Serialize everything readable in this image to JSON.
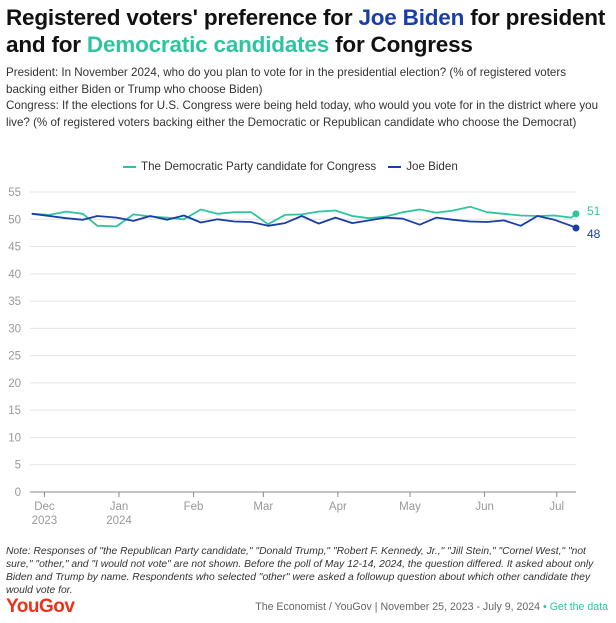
{
  "title": {
    "part1": "Registered voters' preference for ",
    "biden": "Joe Biden",
    "part2": " for president and for ",
    "dem": "Democratic candidates",
    "part3": " for Congress"
  },
  "subtitle": {
    "line1": "President: In November 2024, who do you plan to vote for in the presidential election? (% of registered voters backing either Biden or Trump who choose Biden)",
    "line2": "Congress: If the elections for U.S. Congress were being held today, who would you vote for in the district where you live? (% of registered voters backing either the Democratic or Republican candidate who choose the Democrat)"
  },
  "note": "Note: Responses of \"the Republican Party candidate,\" \"Donald Trump,\" \"Robert F. Kennedy, Jr.,\" \"Jill Stein,\" \"Cornel West,\" \"not sure,\" \"other,\" and \"I would not vote\" are not shown. Before the poll of May 12-14, 2024, the question differed. It asked about only Biden and Trump by name. Respondents who selected \"other\" were asked a followup question about which other candidate they would vote for.",
  "footer": {
    "logo": "YouGov",
    "source": "The Economist / YouGov | November 25, 2023 - July 9, 2024",
    "bullet": "•",
    "link": "Get the data"
  },
  "colors": {
    "biden": "#1a3ea8",
    "dem": "#2fc4a0",
    "grid": "#e4e4e4",
    "axis": "#888888",
    "tick": "#999999"
  },
  "chart_data": {
    "type": "line",
    "ylim": [
      0,
      55
    ],
    "yticks": [
      0,
      5,
      10,
      15,
      20,
      25,
      30,
      35,
      40,
      45,
      50,
      55
    ],
    "xlim": [
      "2023-11-25",
      "2024-07-09"
    ],
    "x_ticks": [
      {
        "date": "2023-12-01",
        "label": "Dec",
        "sub": "2023"
      },
      {
        "date": "2024-01-01",
        "label": "Jan",
        "sub": "2024"
      },
      {
        "date": "2024-02-01",
        "label": "Feb",
        "sub": ""
      },
      {
        "date": "2024-03-01",
        "label": "Mar",
        "sub": ""
      },
      {
        "date": "2024-04-01",
        "label": "Apr",
        "sub": ""
      },
      {
        "date": "2024-05-01",
        "label": "May",
        "sub": ""
      },
      {
        "date": "2024-06-01",
        "label": "Jun",
        "sub": ""
      },
      {
        "date": "2024-07-01",
        "label": "Jul",
        "sub": ""
      }
    ],
    "grid": true,
    "legend_position": "top",
    "series": [
      {
        "name": "The Democratic Party candidate for Congress",
        "color": "#2fc4a0",
        "end_label": "51",
        "points": [
          [
            "2023-11-26",
            51
          ],
          [
            "2023-12-03",
            50.8
          ],
          [
            "2023-12-10",
            51.4
          ],
          [
            "2023-12-17",
            51.0
          ],
          [
            "2023-12-23",
            48.8
          ],
          [
            "2023-12-31",
            48.7
          ],
          [
            "2024-01-07",
            50.9
          ],
          [
            "2024-01-14",
            50.5
          ],
          [
            "2024-01-21",
            50.3
          ],
          [
            "2024-01-28",
            50.0
          ],
          [
            "2024-02-04",
            51.8
          ],
          [
            "2024-02-11",
            51.0
          ],
          [
            "2024-02-18",
            51.3
          ],
          [
            "2024-02-25",
            51.3
          ],
          [
            "2024-03-03",
            49.1
          ],
          [
            "2024-03-10",
            50.8
          ],
          [
            "2024-03-17",
            50.9
          ],
          [
            "2024-03-24",
            51.4
          ],
          [
            "2024-03-31",
            51.6
          ],
          [
            "2024-04-07",
            50.6
          ],
          [
            "2024-04-14",
            50.2
          ],
          [
            "2024-04-21",
            50.5
          ],
          [
            "2024-04-28",
            51.3
          ],
          [
            "2024-05-05",
            51.8
          ],
          [
            "2024-05-12",
            51.2
          ],
          [
            "2024-05-19",
            51.6
          ],
          [
            "2024-05-26",
            52.3
          ],
          [
            "2024-06-02",
            51.3
          ],
          [
            "2024-06-09",
            51.0
          ],
          [
            "2024-06-16",
            50.7
          ],
          [
            "2024-06-23",
            50.6
          ],
          [
            "2024-06-30",
            50.7
          ],
          [
            "2024-07-07",
            50.3
          ],
          [
            "2024-07-09",
            51
          ]
        ]
      },
      {
        "name": "Joe Biden",
        "color": "#1a3ea8",
        "end_label": "48",
        "points": [
          [
            "2023-11-26",
            51
          ],
          [
            "2023-12-03",
            50.6
          ],
          [
            "2023-12-10",
            50.2
          ],
          [
            "2023-12-17",
            49.9
          ],
          [
            "2023-12-23",
            50.6
          ],
          [
            "2023-12-31",
            50.3
          ],
          [
            "2024-01-07",
            49.7
          ],
          [
            "2024-01-14",
            50.6
          ],
          [
            "2024-01-21",
            49.9
          ],
          [
            "2024-01-28",
            50.7
          ],
          [
            "2024-02-04",
            49.4
          ],
          [
            "2024-02-11",
            50.0
          ],
          [
            "2024-02-18",
            49.6
          ],
          [
            "2024-02-25",
            49.5
          ],
          [
            "2024-03-03",
            48.8
          ],
          [
            "2024-03-10",
            49.3
          ],
          [
            "2024-03-17",
            50.6
          ],
          [
            "2024-03-24",
            49.2
          ],
          [
            "2024-03-31",
            50.3
          ],
          [
            "2024-04-07",
            49.3
          ],
          [
            "2024-04-14",
            49.8
          ],
          [
            "2024-04-21",
            50.3
          ],
          [
            "2024-04-28",
            50.1
          ],
          [
            "2024-05-05",
            49.0
          ],
          [
            "2024-05-12",
            50.3
          ],
          [
            "2024-05-19",
            49.9
          ],
          [
            "2024-05-26",
            49.6
          ],
          [
            "2024-06-02",
            49.5
          ],
          [
            "2024-06-09",
            49.8
          ],
          [
            "2024-06-16",
            48.8
          ],
          [
            "2024-06-23",
            50.6
          ],
          [
            "2024-06-30",
            49.9
          ],
          [
            "2024-07-07",
            48.8
          ],
          [
            "2024-07-09",
            48.4
          ]
        ]
      }
    ]
  }
}
